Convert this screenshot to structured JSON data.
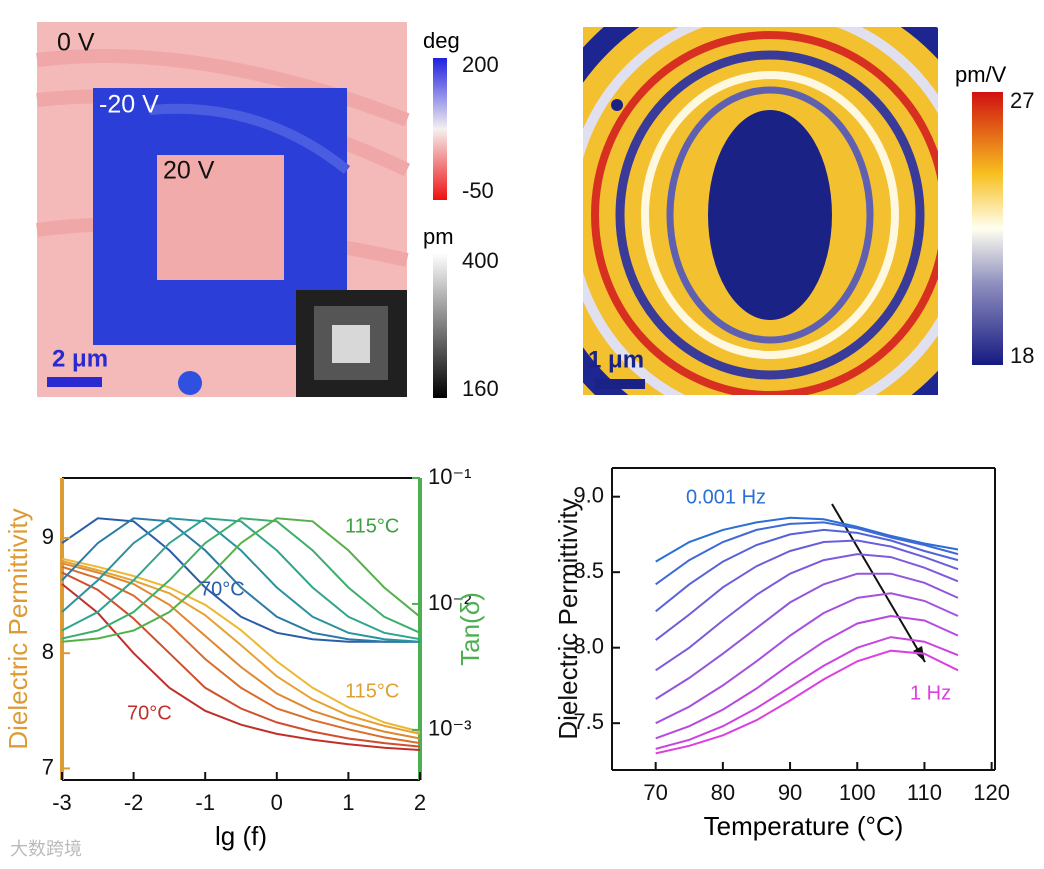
{
  "panels": [
    {
      "labels": [
        "0 V",
        "-20 V",
        "20 V"
      ],
      "scale_bar": "2 μm",
      "colorbars": [
        {
          "unit": "deg",
          "ticks": [
            200,
            -50
          ]
        },
        {
          "unit": "pm",
          "ticks": [
            400,
            160
          ]
        }
      ]
    },
    {
      "scale_bar": "1 μm",
      "colorbars": [
        {
          "unit": "pm/V",
          "ticks": [
            27,
            18
          ]
        }
      ]
    }
  ],
  "chart_data": [
    {
      "type": "line",
      "xlabel": "lg (f)",
      "ylabel": "Dielectric Permittivity",
      "y2label": "Tan(δ)",
      "y_color": "#dc9b35",
      "y2_color": "#4caf50",
      "x": [
        -3,
        -2.5,
        -2,
        -1.5,
        -1,
        -0.5,
        0,
        0.5,
        1,
        1.5,
        2
      ],
      "xlim": [
        -3,
        2
      ],
      "xticks": [
        -3,
        -2,
        -1,
        0,
        1,
        2
      ],
      "ylim": [
        6.9,
        9.52
      ],
      "yticks": [
        7,
        8,
        9
      ],
      "y2lim": [
        0.0004,
        0.1
      ],
      "y2scale": "log",
      "y2ticks": [
        {
          "value": 0.001,
          "label": "10⁻³"
        },
        {
          "value": 0.01,
          "label": "10⁻²"
        },
        {
          "value": 0.1,
          "label": "10⁻¹"
        }
      ],
      "annotations": [
        "70°C",
        "115°C",
        "70°C",
        "115°C"
      ],
      "series": [
        {
          "color": "#c0302a",
          "values": [
            8.6,
            8.35,
            8.0,
            7.7,
            7.5,
            7.38,
            7.3,
            7.25,
            7.21,
            7.18,
            7.16
          ]
        },
        {
          "color": "#cf4f2c",
          "values": [
            8.7,
            8.55,
            8.3,
            8.0,
            7.7,
            7.52,
            7.4,
            7.32,
            7.26,
            7.22,
            7.19
          ]
        },
        {
          "color": "#d96c2e",
          "values": [
            8.75,
            8.65,
            8.5,
            8.25,
            7.95,
            7.7,
            7.52,
            7.42,
            7.34,
            7.27,
            7.22
          ]
        },
        {
          "color": "#e08830",
          "values": [
            8.78,
            8.7,
            8.6,
            8.42,
            8.15,
            7.88,
            7.65,
            7.5,
            7.4,
            7.32,
            7.26
          ]
        },
        {
          "color": "#e6a232",
          "values": [
            8.8,
            8.72,
            8.63,
            8.52,
            8.33,
            8.07,
            7.8,
            7.6,
            7.46,
            7.37,
            7.3
          ]
        },
        {
          "color": "#ebb934",
          "values": [
            8.82,
            8.75,
            8.67,
            8.57,
            8.42,
            8.2,
            7.93,
            7.7,
            7.53,
            7.4,
            7.32
          ]
        },
        {
          "color": "#2a5ea8",
          "axis": "y2",
          "values": [
            0.0304,
            0.0479,
            0.0453,
            0.0266,
            0.0135,
            0.00791,
            0.0059,
            0.00525,
            0.00501,
            0.00501,
            0.00501
          ]
        },
        {
          "color": "#2a7aa6",
          "axis": "y2",
          "values": [
            0.0154,
            0.0304,
            0.0479,
            0.0453,
            0.0266,
            0.0135,
            0.00791,
            0.0059,
            0.00525,
            0.00501,
            0.00501
          ]
        },
        {
          "color": "#2a93a0",
          "axis": "y2",
          "values": [
            0.00863,
            0.0154,
            0.0304,
            0.0479,
            0.0453,
            0.0266,
            0.0135,
            0.00791,
            0.0059,
            0.00525,
            0.00501
          ]
        },
        {
          "color": "#30a58e",
          "axis": "y2",
          "values": [
            0.00615,
            0.00863,
            0.0154,
            0.0304,
            0.0479,
            0.0453,
            0.0266,
            0.0135,
            0.00791,
            0.0059,
            0.00525
          ]
        },
        {
          "color": "#3fae6a",
          "axis": "y2",
          "values": [
            0.00532,
            0.00615,
            0.00863,
            0.0154,
            0.0304,
            0.0479,
            0.0453,
            0.0266,
            0.0135,
            0.00791,
            0.0059
          ]
        },
        {
          "color": "#56b04a",
          "axis": "y2",
          "values": [
            0.00501,
            0.00532,
            0.00615,
            0.00863,
            0.0154,
            0.0304,
            0.0479,
            0.0453,
            0.0266,
            0.0135,
            0.00791
          ]
        }
      ]
    },
    {
      "type": "line",
      "xlabel": "Temperature (°C)",
      "ylabel": "Dielectric Permittivity",
      "x": [
        70,
        75,
        80,
        85,
        90,
        95,
        100,
        105,
        110,
        115
      ],
      "xlim": [
        63.5,
        120.5
      ],
      "xticks": [
        70,
        80,
        90,
        100,
        110,
        120
      ],
      "ylim": [
        7.19,
        9.19
      ],
      "yticks": [
        7.5,
        {
          "value": 8,
          "label": "8.0"
        },
        8.5,
        {
          "value": 9,
          "label": "9.0"
        }
      ],
      "annotations": [
        "0.001 Hz",
        "1 Hz"
      ],
      "series": [
        {
          "color": "#2a6fd6",
          "values": [
            8.57,
            8.7,
            8.78,
            8.83,
            8.86,
            8.85,
            8.8,
            8.74,
            8.69,
            8.65
          ]
        },
        {
          "color": "#4068d8",
          "values": [
            8.42,
            8.58,
            8.7,
            8.78,
            8.82,
            8.83,
            8.79,
            8.73,
            8.68,
            8.62
          ]
        },
        {
          "color": "#5563da",
          "values": [
            8.24,
            8.42,
            8.57,
            8.68,
            8.75,
            8.78,
            8.76,
            8.71,
            8.64,
            8.58
          ]
        },
        {
          "color": "#6a5edc",
          "values": [
            8.05,
            8.22,
            8.4,
            8.54,
            8.64,
            8.7,
            8.71,
            8.67,
            8.6,
            8.52
          ]
        },
        {
          "color": "#7e5adc",
          "values": [
            7.85,
            8.0,
            8.18,
            8.35,
            8.49,
            8.58,
            8.62,
            8.6,
            8.53,
            8.44
          ]
        },
        {
          "color": "#9255dd",
          "values": [
            7.66,
            7.8,
            7.96,
            8.13,
            8.3,
            8.42,
            8.49,
            8.49,
            8.43,
            8.33
          ]
        },
        {
          "color": "#a550de",
          "values": [
            7.5,
            7.61,
            7.75,
            7.91,
            8.08,
            8.23,
            8.33,
            8.36,
            8.31,
            8.21
          ]
        },
        {
          "color": "#b84ade",
          "values": [
            7.4,
            7.48,
            7.59,
            7.73,
            7.89,
            8.04,
            8.16,
            8.21,
            8.18,
            8.08
          ]
        },
        {
          "color": "#ca45df",
          "values": [
            7.33,
            7.39,
            7.48,
            7.6,
            7.74,
            7.88,
            8.0,
            8.07,
            8.04,
            7.95
          ]
        },
        {
          "color": "#dc40e0",
          "values": [
            7.3,
            7.35,
            7.42,
            7.52,
            7.65,
            7.79,
            7.91,
            7.98,
            7.96,
            7.85
          ]
        }
      ]
    }
  ],
  "watermark": "大数跨境"
}
